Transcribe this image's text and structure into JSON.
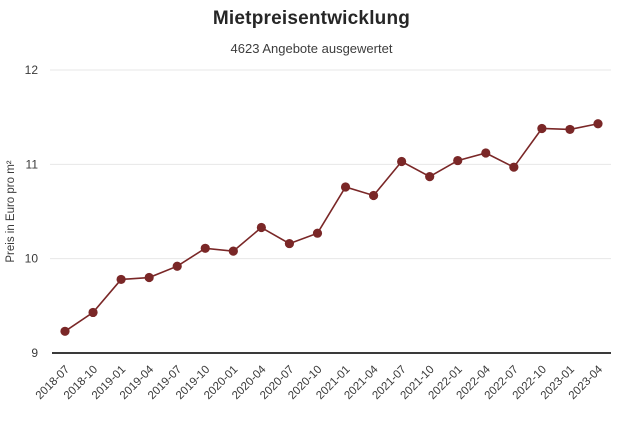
{
  "header": {
    "title": "Mietpreisentwicklung",
    "subtitle": "4623 Angebote ausgewertet"
  },
  "chart_data": {
    "type": "line",
    "title": "Mietpreisentwicklung",
    "subtitle": "4623 Angebote ausgewertet",
    "xlabel": "",
    "ylabel": "Preis in Euro pro m²",
    "categories": [
      "2018-07",
      "2018-10",
      "2019-01",
      "2019-04",
      "2019-07",
      "2019-10",
      "2020-01",
      "2020-04",
      "2020-07",
      "2020-10",
      "2021-01",
      "2021-04",
      "2021-07",
      "2021-10",
      "2022-01",
      "2022-04",
      "2022-07",
      "2022-10",
      "2023-01",
      "2023-04"
    ],
    "series": [
      {
        "name": "Preis in Euro pro m²",
        "values": [
          9.23,
          9.43,
          9.78,
          9.8,
          9.92,
          10.11,
          10.08,
          10.33,
          10.16,
          10.27,
          10.76,
          10.67,
          11.03,
          10.87,
          11.04,
          11.12,
          10.97,
          11.38,
          11.37,
          11.43
        ]
      }
    ],
    "ylim": [
      9,
      12
    ],
    "y_ticks": [
      9,
      10,
      11,
      12
    ],
    "grid": true,
    "legend_position": "none",
    "colors": {
      "line": "#7a2727",
      "point": "#7a2727",
      "gridline": "#e7e7e7",
      "axis_line": "#3a3a3a",
      "title_text": "#262626",
      "subtitle_text": "#3d3d3d",
      "tick_text": "#3a3a3a"
    }
  }
}
